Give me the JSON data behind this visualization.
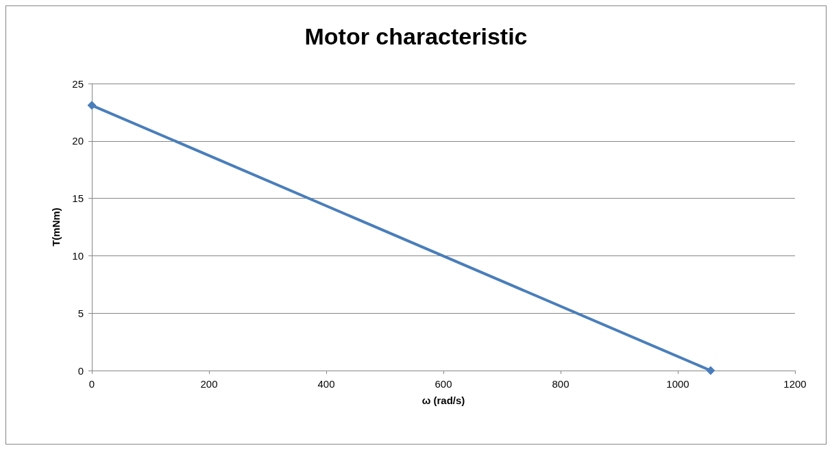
{
  "chart_data": {
    "type": "line",
    "title": "Motor characteristic",
    "xlabel": "ω (rad/s)",
    "ylabel": "T(mNm)",
    "x": [
      0,
      1056
    ],
    "series": [
      {
        "color": "#4a7ebb",
        "values": [
          23.1,
          0
        ]
      }
    ],
    "xlim": [
      0,
      1200
    ],
    "xticks": [
      0,
      200,
      400,
      600,
      800,
      1000,
      1200
    ],
    "ylim": [
      0,
      25
    ],
    "yticks": [
      0,
      5,
      10,
      15,
      20,
      25
    ],
    "grid": "y",
    "marker": "diamond",
    "line_style": "solid"
  }
}
